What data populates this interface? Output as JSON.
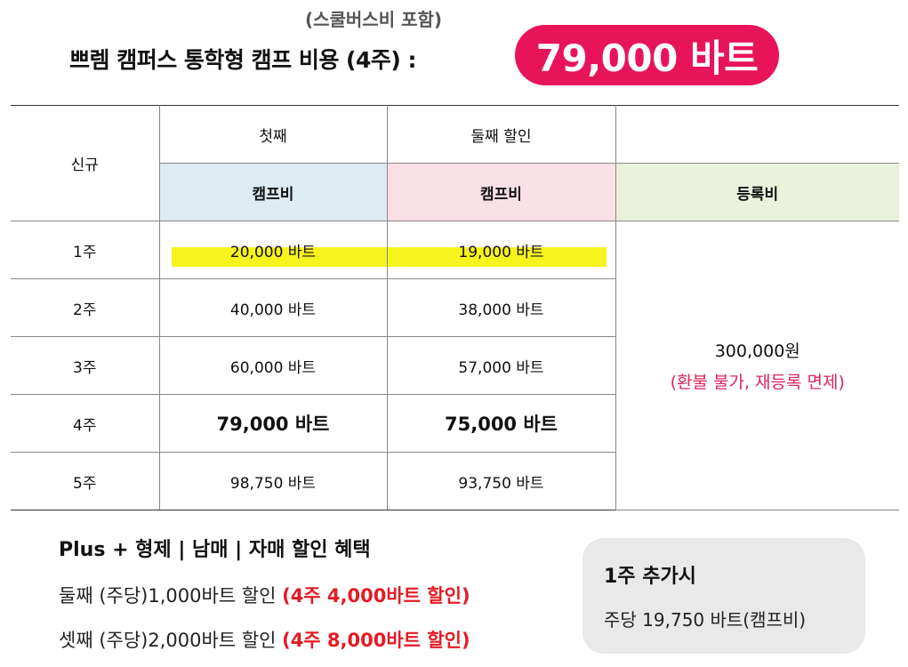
{
  "header": {
    "subtitle": "(스쿨버스비 포함)",
    "title": "쁘렘 캠퍼스 통학형 캠프 비용 (4주) :",
    "price": "79,000 바트"
  },
  "table": {
    "corner": "신규",
    "group_first": "첫째",
    "group_second": "둘째 할인",
    "col_first": "캠프비",
    "col_second": "캠프비",
    "col_reg": "등록비",
    "rows": [
      {
        "week": "1주",
        "first": "20,000 바트",
        "second": "19,000 바트"
      },
      {
        "week": "2주",
        "first": "40,000 바트",
        "second": "38,000 바트"
      },
      {
        "week": "3주",
        "first": "60,000 바트",
        "second": "57,000 바트"
      },
      {
        "week": "4주",
        "first": "79,000 바트",
        "second": "75,000 바트"
      },
      {
        "week": "5주",
        "first": "98,750 바트",
        "second": "93,750 바트"
      }
    ],
    "registration_amount": "300,000원",
    "registration_note": "(환불 불가, 재등록 면제)"
  },
  "discount": {
    "title": "Plus + 형제 | 남매 | 자매 할인 혜택",
    "lines": [
      {
        "text": "둘째 (주당)1,000바트 할인 ",
        "highlight": "(4주 4,000바트 할인)"
      },
      {
        "text": "셋째 (주당)2,000바트 할인 ",
        "highlight": "(4주 8,000바트 할인)"
      }
    ]
  },
  "extra": {
    "title": "1주 추가시",
    "body": "주당 19,750 바트(캠프비)"
  },
  "colors": {
    "accent_pink": "#e8145a",
    "discount_red": "#e31b23",
    "highlight_yellow": "#f7f31e"
  }
}
